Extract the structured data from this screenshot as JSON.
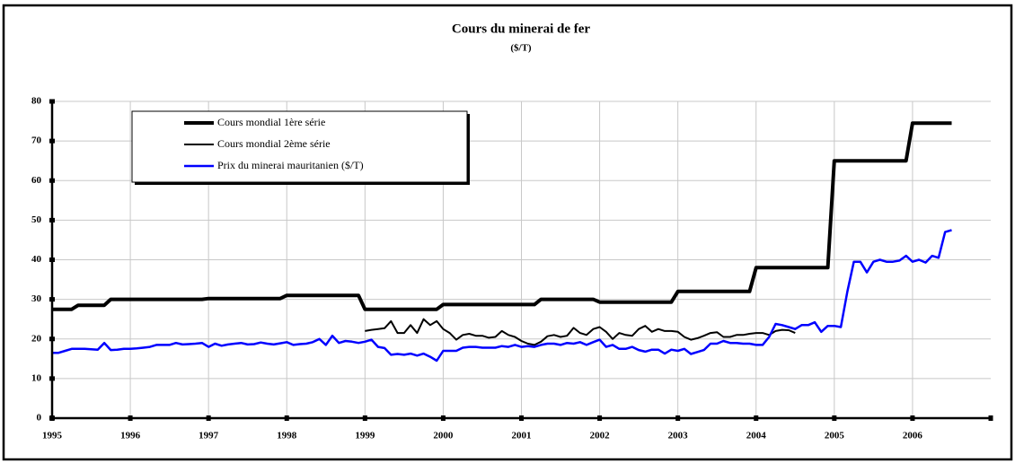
{
  "chart_data": {
    "type": "line",
    "title": "Cours du minerai de fer",
    "subtitle": "($/T)",
    "xlim": [
      1995,
      2007
    ],
    "xticks": [
      1995,
      1996,
      1997,
      1998,
      1999,
      2000,
      2001,
      2002,
      2003,
      2004,
      2005,
      2006
    ],
    "ylim": [
      0,
      80
    ],
    "yticks": [
      0,
      10,
      20,
      30,
      40,
      50,
      60,
      70,
      80
    ],
    "grid": true,
    "legend": "upper left",
    "series": [
      {
        "name": "Cours mondial 1ère série",
        "color": "#000000",
        "x": [
          1995,
          1995.25,
          1995.333,
          1995.667,
          1995.75,
          1996.917,
          1997,
          1997.917,
          1998,
          1998.917,
          1999,
          1999.917,
          2000,
          2001.167,
          2001.25,
          2001.917,
          2002,
          2002.917,
          2003,
          2003.917,
          2004,
          2004.917,
          2005,
          2005.917,
          2006,
          2006.5
        ],
        "values": [
          27.5,
          27.5,
          28.5,
          28.5,
          30,
          30,
          30.2,
          30.2,
          31,
          31,
          27.5,
          27.5,
          28.7,
          28.7,
          30,
          30,
          29.3,
          29.3,
          32,
          32,
          38,
          38,
          65,
          65,
          74.5,
          74.5
        ]
      },
      {
        "name": "Cours mondial 2ème série",
        "color": "#000000",
        "x": [
          1999,
          1999.083,
          1999.167,
          1999.25,
          1999.333,
          1999.417,
          1999.5,
          1999.583,
          1999.667,
          1999.75,
          1999.833,
          1999.917,
          2000,
          2000.083,
          2000.167,
          2000.25,
          2000.333,
          2000.417,
          2000.5,
          2000.583,
          2000.667,
          2000.75,
          2000.833,
          2000.917,
          2001,
          2001.083,
          2001.167,
          2001.25,
          2001.333,
          2001.417,
          2001.5,
          2001.583,
          2001.667,
          2001.75,
          2001.833,
          2001.917,
          2002,
          2002.083,
          2002.167,
          2002.25,
          2002.333,
          2002.417,
          2002.5,
          2002.583,
          2002.667,
          2002.75,
          2002.833,
          2002.917,
          2003,
          2003.083,
          2003.167,
          2003.25,
          2003.333,
          2003.417,
          2003.5,
          2003.583,
          2003.667,
          2003.75,
          2003.833,
          2003.917,
          2004,
          2004.083,
          2004.167,
          2004.25,
          2004.333,
          2004.417,
          2004.5
        ],
        "values": [
          22,
          22.3,
          22.5,
          22.7,
          24.5,
          21.5,
          21.5,
          23.5,
          21.5,
          25,
          23.5,
          24.5,
          22.5,
          21.5,
          19.8,
          21,
          21.3,
          20.8,
          20.8,
          20.3,
          20.5,
          22,
          21,
          20.5,
          19.5,
          18.8,
          18.5,
          19.3,
          20.7,
          21,
          20.5,
          20.8,
          22.8,
          21.5,
          21,
          22.5,
          23,
          21.8,
          20,
          21.5,
          21,
          20.8,
          22.5,
          23.3,
          21.8,
          22.5,
          22,
          22,
          21.8,
          20.5,
          19.8,
          20.2,
          20.8,
          21.5,
          21.7,
          20.5,
          20.5,
          21,
          21,
          21.3,
          21.5,
          21.5,
          21,
          22,
          22.3,
          22.2,
          21.5
        ]
      },
      {
        "name": "Prix du minerai mauritanien ($/T)",
        "color": "#0000ff",
        "x": [
          1995,
          1995.083,
          1995.167,
          1995.25,
          1995.333,
          1995.417,
          1995.5,
          1995.583,
          1995.667,
          1995.75,
          1995.833,
          1995.917,
          1996,
          1996.083,
          1996.167,
          1996.25,
          1996.333,
          1996.417,
          1996.5,
          1996.583,
          1996.667,
          1996.75,
          1996.833,
          1996.917,
          1997,
          1997.083,
          1997.167,
          1997.25,
          1997.333,
          1997.417,
          1997.5,
          1997.583,
          1997.667,
          1997.75,
          1997.833,
          1997.917,
          1998,
          1998.083,
          1998.167,
          1998.25,
          1998.333,
          1998.417,
          1998.5,
          1998.583,
          1998.667,
          1998.75,
          1998.833,
          1998.917,
          1999,
          1999.083,
          1999.167,
          1999.25,
          1999.333,
          1999.417,
          1999.5,
          1999.583,
          1999.667,
          1999.75,
          1999.833,
          1999.917,
          2000,
          2000.083,
          2000.167,
          2000.25,
          2000.333,
          2000.417,
          2000.5,
          2000.583,
          2000.667,
          2000.75,
          2000.833,
          2000.917,
          2001,
          2001.083,
          2001.167,
          2001.25,
          2001.333,
          2001.417,
          2001.5,
          2001.583,
          2001.667,
          2001.75,
          2001.833,
          2001.917,
          2002,
          2002.083,
          2002.167,
          2002.25,
          2002.333,
          2002.417,
          2002.5,
          2002.583,
          2002.667,
          2002.75,
          2002.833,
          2002.917,
          2003,
          2003.083,
          2003.167,
          2003.25,
          2003.333,
          2003.417,
          2003.5,
          2003.583,
          2003.667,
          2003.75,
          2003.833,
          2003.917,
          2004,
          2004.083,
          2004.167,
          2004.25,
          2004.333,
          2004.417,
          2004.5,
          2004.583,
          2004.667,
          2004.75,
          2004.833,
          2004.917,
          2005,
          2005.083,
          2005.167,
          2005.25,
          2005.333,
          2005.417,
          2005.5,
          2005.583,
          2005.667,
          2005.75,
          2005.833,
          2005.917,
          2006,
          2006.083,
          2006.167,
          2006.25,
          2006.333,
          2006.417,
          2006.5
        ],
        "values": [
          16.5,
          16.5,
          17,
          17.5,
          17.5,
          17.5,
          17.4,
          17.3,
          19,
          17.2,
          17.3,
          17.5,
          17.5,
          17.6,
          17.8,
          18,
          18.5,
          18.5,
          18.5,
          19,
          18.6,
          18.7,
          18.8,
          19,
          18,
          18.8,
          18.3,
          18.6,
          18.8,
          19,
          18.6,
          18.7,
          19.1,
          18.8,
          18.6,
          18.9,
          19.2,
          18.5,
          18.7,
          18.8,
          19.2,
          20,
          18.5,
          20.8,
          19,
          19.5,
          19.3,
          19,
          19.3,
          19.8,
          18,
          17.7,
          16,
          16.2,
          16,
          16.3,
          15.8,
          16.3,
          15.5,
          14.5,
          17,
          17,
          17,
          17.8,
          18,
          18,
          17.8,
          17.8,
          17.8,
          18.2,
          18,
          18.5,
          18,
          18.2,
          18,
          18.5,
          18.8,
          18.8,
          18.5,
          19,
          18.8,
          19.2,
          18.5,
          19.2,
          19.8,
          18,
          18.5,
          17.5,
          17.5,
          18,
          17.2,
          16.8,
          17.3,
          17.3,
          16.3,
          17.3,
          17,
          17.5,
          16.2,
          16.7,
          17.2,
          18.8,
          18.8,
          19.5,
          19,
          19,
          18.8,
          18.8,
          18.5,
          18.5,
          20.5,
          23.8,
          23.5,
          23,
          22.5,
          23.5,
          23.5,
          24.2,
          21.8,
          23.3,
          23.3,
          23,
          32,
          39.5,
          39.5,
          36.8,
          39.5,
          40,
          39.5,
          39.5,
          39.8,
          41,
          39.5,
          40,
          39.3,
          41,
          40.5,
          47,
          47.5
        ]
      }
    ]
  }
}
